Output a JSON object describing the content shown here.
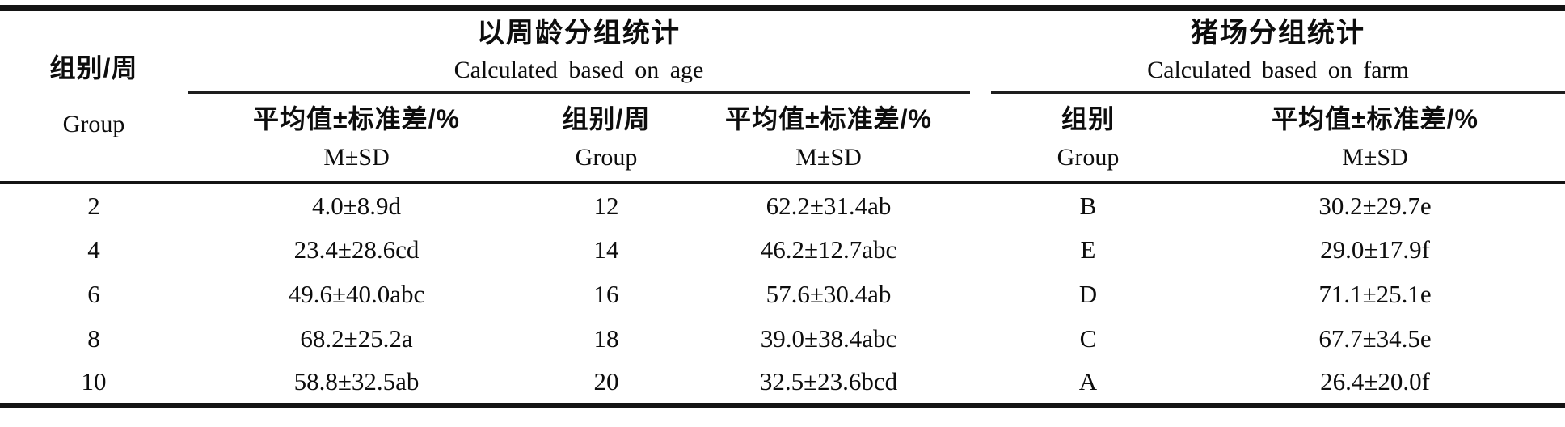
{
  "table": {
    "corner": {
      "zh": "组别/周",
      "en": "Group"
    },
    "groups": [
      {
        "zh": "以周龄分组统计",
        "en": "Calculated based on age"
      },
      {
        "zh": "猪场分组统计",
        "en": "Calculated based on farm"
      }
    ],
    "subheaders": [
      {
        "zh": "平均值±标准差/%",
        "en": "M±SD"
      },
      {
        "zh": "组别/周",
        "en": "Group"
      },
      {
        "zh": "平均值±标准差/%",
        "en": "M±SD"
      },
      {
        "zh": "组别",
        "en": "Group"
      },
      {
        "zh": "平均值±标准差/%",
        "en": "M±SD"
      }
    ],
    "rows": [
      [
        "2",
        "4.0±8.9d",
        "12",
        "62.2±31.4ab",
        "B",
        "30.2±29.7e"
      ],
      [
        "4",
        "23.4±28.6cd",
        "14",
        "46.2±12.7abc",
        "E",
        "29.0±17.9f"
      ],
      [
        "6",
        "49.6±40.0abc",
        "16",
        "57.6±30.4ab",
        "D",
        "71.1±25.1e"
      ],
      [
        "8",
        "68.2±25.2a",
        "18",
        "39.0±38.4abc",
        "C",
        "67.7±34.5e"
      ],
      [
        "10",
        "58.8±32.5ab",
        "20",
        "32.5±23.6bcd",
        "A",
        "26.4±20.0f"
      ]
    ],
    "colors": {
      "text": "#0d0d0d",
      "rule_thick": "#141414",
      "rule_thin": "#1e1e1e",
      "background": "#ffffff"
    }
  }
}
